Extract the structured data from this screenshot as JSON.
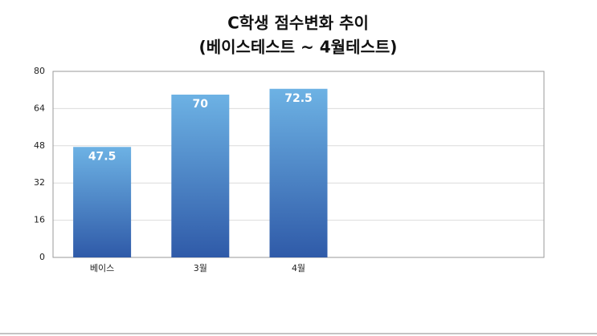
{
  "chart_data": {
    "type": "bar",
    "title": "C학생 점수변화 추이",
    "subtitle": "(베이스테스트 ~ 4월테스트)",
    "categories": [
      "베이스",
      "3월",
      "4월",
      null,
      null
    ],
    "values": [
      47.5,
      70,
      72.5,
      null,
      null
    ],
    "color": "#2f5aa8",
    "ylim": [
      0,
      80
    ],
    "yticks": [
      0,
      16,
      32,
      48,
      64,
      80
    ],
    "grid": true
  }
}
